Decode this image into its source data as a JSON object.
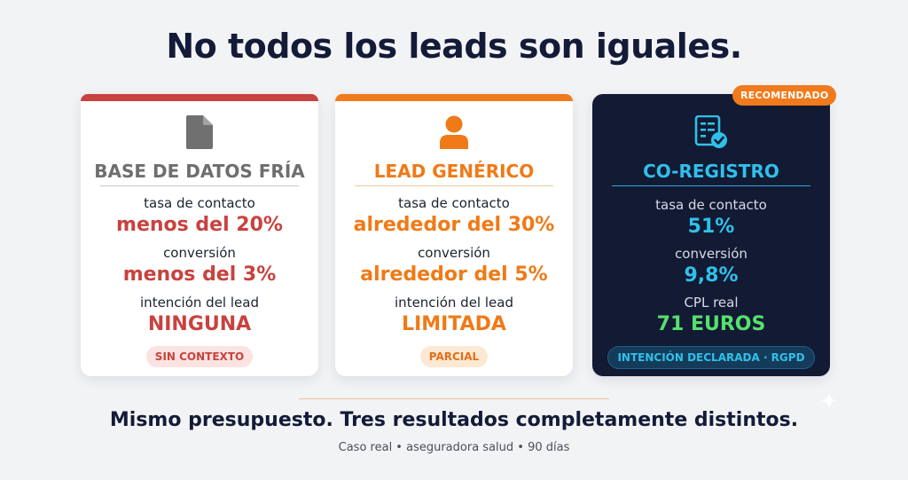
{
  "title": "No todos los leads son iguales.",
  "recommended_badge": "RECOMENDADO",
  "cards": [
    {
      "icon": "document-icon",
      "title": "BASE DE DATOS FRÍA",
      "metrics": [
        {
          "label": "tasa de contacto",
          "value": "menos del 20%"
        },
        {
          "label": "conversión",
          "value": "menos del 3%"
        },
        {
          "label": "intención del lead",
          "value": "NINGUNA"
        }
      ],
      "badge": "SIN CONTEXTO",
      "accent": "#c8423f"
    },
    {
      "icon": "person-icon",
      "title": "LEAD GENÉRICO",
      "metrics": [
        {
          "label": "tasa de contacto",
          "value": "alrededor del 30%"
        },
        {
          "label": "conversión",
          "value": "alrededor del 5%"
        },
        {
          "label": "intención del lead",
          "value": "LIMITADA"
        }
      ],
      "badge": "PARCIAL",
      "accent": "#f07a1c"
    },
    {
      "icon": "form-check-icon",
      "title": "CO-REGISTRO",
      "metrics": [
        {
          "label": "tasa de contacto",
          "value": "51%"
        },
        {
          "label": "conversión",
          "value": "9,8%"
        },
        {
          "label": "CPL real",
          "value": "71 EUROS"
        }
      ],
      "badge": "INTENCIÓN DECLARADA · RGPD",
      "accent": "#2fc0ea"
    }
  ],
  "footer": {
    "headline": "Mismo presupuesto. Tres resultados completamente distintos.",
    "caption": "Caso real • aseguradora salud • 90 días"
  }
}
